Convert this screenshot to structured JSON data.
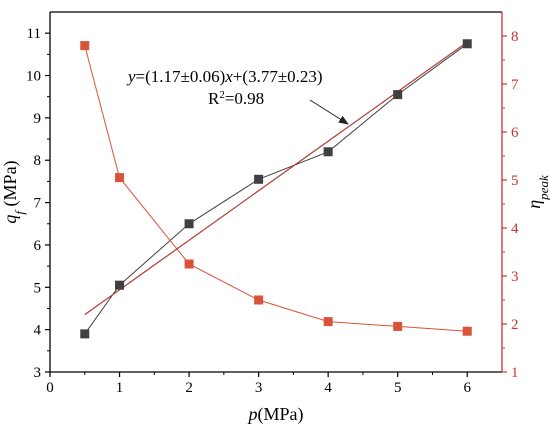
{
  "colors": {
    "left_axis": "#000000",
    "right_axis": "#cc3333",
    "series_qf": "#404040",
    "series_eta": "#d9533a",
    "fit_line": "#b03a2e"
  },
  "chart_data": {
    "type": "scatter",
    "xlabel_main": "p",
    "xlabel_unit": "(MPa)",
    "ylabel_left_main": "q",
    "ylabel_left_sub": "f",
    "ylabel_left_unit": " (MPa)",
    "ylabel_right_main": "η",
    "ylabel_right_sub": "peak",
    "xlim": [
      0,
      6.5
    ],
    "ylim_left": [
      3,
      11.5
    ],
    "ylim_right": [
      1,
      8.5
    ],
    "x_ticks": [
      0,
      1,
      2,
      3,
      4,
      5,
      6
    ],
    "y_left_ticks": [
      3,
      4,
      5,
      6,
      7,
      8,
      9,
      10,
      11
    ],
    "y_right_ticks": [
      1,
      2,
      3,
      4,
      5,
      6,
      7,
      8
    ],
    "series": [
      {
        "axis": "left",
        "x": [
          0.5,
          1,
          2,
          3,
          4,
          5,
          6
        ],
        "values": [
          3.9,
          5.05,
          6.5,
          7.55,
          8.2,
          9.55,
          10.75
        ],
        "marker": "square",
        "connected": true
      },
      {
        "axis": "right",
        "x": [
          0.5,
          1,
          2,
          3,
          4,
          5,
          6
        ],
        "values": [
          7.8,
          5.05,
          3.25,
          2.5,
          2.05,
          1.95,
          1.85
        ],
        "marker": "square",
        "connected": true
      }
    ],
    "fit_line": {
      "axis": "left",
      "slope": 1.17,
      "intercept": 3.77,
      "x_range": [
        0.5,
        6
      ]
    },
    "annotation": {
      "eq_y": "y",
      "eq_mid": "=(1.17±0.06)",
      "eq_x": "x",
      "eq_tail": "+(3.77±0.23)",
      "r2_label": "R",
      "r2_sup": "2",
      "r2_value": "=0.98"
    },
    "grid": false
  }
}
